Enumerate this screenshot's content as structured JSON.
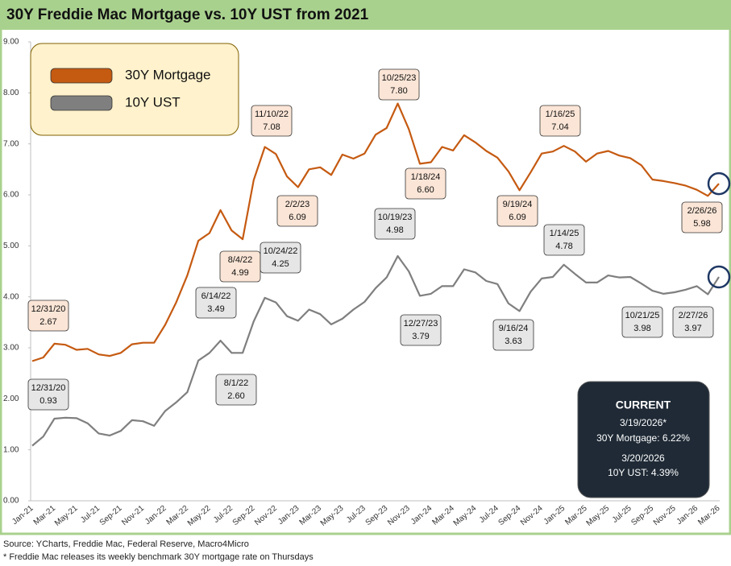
{
  "chart_data": {
    "type": "line",
    "title": "30Y Freddie Mac Mortgage vs. 10Y UST from 2021",
    "categories": [
      "Jan-21",
      null,
      "Mar-21",
      null,
      "May-21",
      null,
      "Jul-21",
      null,
      "Sep-21",
      null,
      "Nov-21",
      null,
      "Jan-22",
      null,
      "Mar-22",
      null,
      "May-22",
      null,
      "Jul-22",
      null,
      "Sep-22",
      null,
      "Nov-22",
      null,
      "Jan-23",
      null,
      "Mar-23",
      null,
      "May-23",
      null,
      "Jul-23",
      null,
      "Sep-23",
      null,
      "Nov-23",
      null,
      "Jan-24",
      null,
      "Mar-24",
      null,
      "May-24",
      null,
      "Jul-24",
      null,
      "Sep-24",
      null,
      "Nov-24",
      null,
      "Jan-25",
      null,
      "Mar-25",
      null,
      "May-25",
      null,
      "Jul-25",
      null,
      "Sep-25",
      null,
      "Nov-25",
      null,
      "Jan-26",
      null,
      "Mar-26"
    ],
    "series": [
      {
        "name": "30Y Mortgage",
        "color": "#c55a11",
        "values": [
          2.74,
          2.81,
          3.08,
          3.06,
          2.96,
          2.98,
          2.87,
          2.84,
          2.9,
          3.07,
          3.1,
          3.1,
          3.45,
          3.89,
          4.42,
          5.1,
          5.25,
          5.7,
          5.3,
          5.13,
          6.29,
          6.94,
          6.8,
          6.36,
          6.15,
          6.5,
          6.54,
          6.39,
          6.79,
          6.71,
          6.81,
          7.18,
          7.31,
          7.79,
          7.29,
          6.61,
          6.64,
          6.94,
          6.87,
          7.17,
          7.03,
          6.86,
          6.73,
          6.46,
          6.09,
          6.44,
          6.81,
          6.85,
          6.96,
          6.85,
          6.65,
          6.81,
          6.86,
          6.77,
          6.72,
          6.58,
          6.3,
          6.27,
          6.23,
          6.18,
          6.1,
          5.98,
          6.22
        ],
        "callouts": [
          {
            "date": "12/31/20",
            "label": "2.67"
          },
          {
            "date": "8/4/22",
            "label": "4.99"
          },
          {
            "date": "11/10/22",
            "label": "7.08"
          },
          {
            "date": "2/2/23",
            "label": "6.09"
          },
          {
            "date": "10/25/23",
            "label": "7.80"
          },
          {
            "date": "1/18/24",
            "label": "6.60"
          },
          {
            "date": "9/19/24",
            "label": "6.09"
          },
          {
            "date": "1/16/25",
            "label": "7.04"
          },
          {
            "date": "2/26/26",
            "label": "5.98"
          }
        ]
      },
      {
        "name": "10Y UST",
        "color": "#7f7f7f",
        "values": [
          1.08,
          1.26,
          1.61,
          1.63,
          1.62,
          1.52,
          1.32,
          1.28,
          1.37,
          1.58,
          1.56,
          1.47,
          1.76,
          1.93,
          2.13,
          2.75,
          2.9,
          3.14,
          2.9,
          2.9,
          3.52,
          3.98,
          3.89,
          3.62,
          3.53,
          3.75,
          3.66,
          3.46,
          3.57,
          3.75,
          3.9,
          4.17,
          4.38,
          4.8,
          4.5,
          4.02,
          4.06,
          4.21,
          4.21,
          4.54,
          4.48,
          4.31,
          4.25,
          3.87,
          3.72,
          4.1,
          4.36,
          4.39,
          4.63,
          4.45,
          4.28,
          4.28,
          4.42,
          4.38,
          4.39,
          4.26,
          4.12,
          4.06,
          4.09,
          4.14,
          4.21,
          4.05,
          4.39
        ],
        "callouts": [
          {
            "date": "12/31/20",
            "label": "0.93"
          },
          {
            "date": "6/14/22",
            "label": "3.49"
          },
          {
            "date": "10/24/22",
            "label": "4.25"
          },
          {
            "date": "8/1/22",
            "label": "2.60"
          },
          {
            "date": "10/19/23",
            "label": "4.98"
          },
          {
            "date": "12/27/23",
            "label": "3.79"
          },
          {
            "date": "9/16/24",
            "label": "3.63"
          },
          {
            "date": "1/14/25",
            "label": "4.78"
          },
          {
            "date": "10/21/25",
            "label": "3.98"
          },
          {
            "date": "2/27/26",
            "label": "3.97"
          }
        ]
      }
    ],
    "ylim": [
      0,
      9
    ],
    "yticks": [
      {
        "value": 0,
        "label": "0.00"
      },
      {
        "value": 1,
        "label": "1.00"
      },
      {
        "value": 2,
        "label": "2.00"
      },
      {
        "value": 3,
        "label": "3.00"
      },
      {
        "value": 4,
        "label": "4.00"
      },
      {
        "value": 5,
        "label": "5.00"
      },
      {
        "value": 6,
        "label": "6.00"
      },
      {
        "value": 7,
        "label": "7.00"
      },
      {
        "value": 8,
        "label": "8.00"
      },
      {
        "value": 9,
        "label": "9.00"
      }
    ],
    "grid": false,
    "legend": "upper left",
    "current_box": [
      "CURRENT",
      "3/19/2026*",
      "30Y Mortgage: 6.22%",
      "3/20/2026",
      "10Y UST: 4.39%"
    ],
    "notes": [
      "Source: YCharts, Freddie Mac, Federal Reserve, Macro4Micro",
      "* Freddie Mac releases its weekly benchmark 30Y mortgage rate on Thursdays"
    ]
  }
}
